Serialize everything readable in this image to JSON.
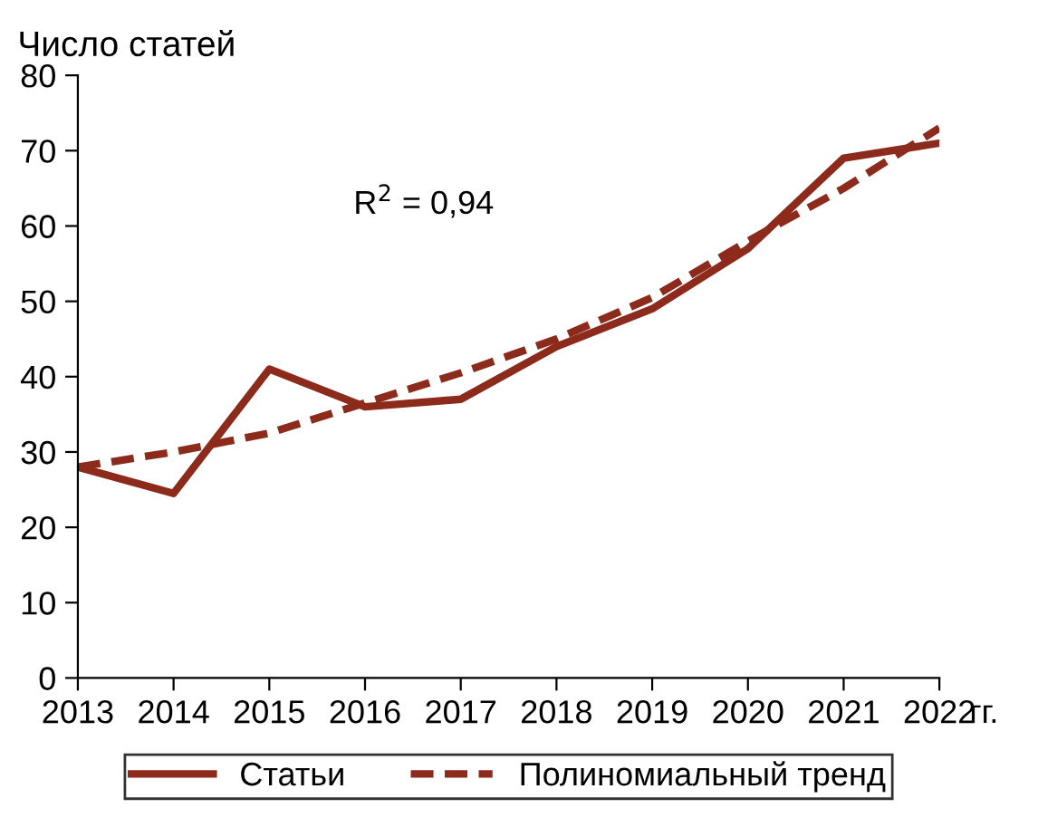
{
  "chart_data": {
    "type": "line",
    "ylabel": "Число статей",
    "xlabel": "гг.",
    "x": [
      2013,
      2014,
      2015,
      2016,
      2017,
      2018,
      2019,
      2020,
      2021,
      2022
    ],
    "series": [
      {
        "name": "Статьи",
        "color": "#8c2a1c",
        "line_style": "solid",
        "values": [
          28,
          24.5,
          41,
          36,
          37,
          44,
          49,
          57,
          69,
          71
        ]
      },
      {
        "name": "Полиномиальный тренд",
        "color": "#8c2a1c",
        "line_style": "dashed",
        "values": [
          28,
          30,
          32.5,
          36.5,
          40.5,
          45,
          50.5,
          58,
          65,
          73
        ]
      }
    ],
    "annotations": [
      "R$^{2}$ = 0,94"
    ],
    "xlim": [
      2013,
      2022
    ],
    "xticks": [
      2013,
      2014,
      2015,
      2016,
      2017,
      2018,
      2019,
      2020,
      2021,
      2022
    ],
    "ylim": [
      0,
      80
    ],
    "yticks": [
      0,
      10,
      20,
      30,
      40,
      50,
      60,
      70,
      80
    ],
    "grid": false,
    "legend": "bottom",
    "marker": "none"
  }
}
